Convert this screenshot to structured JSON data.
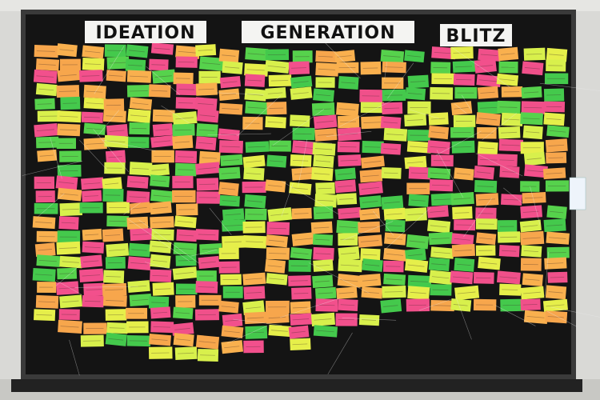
{
  "header": {
    "words": [
      "IDEATION",
      "GENERATION",
      "BLITZ"
    ]
  }
}
